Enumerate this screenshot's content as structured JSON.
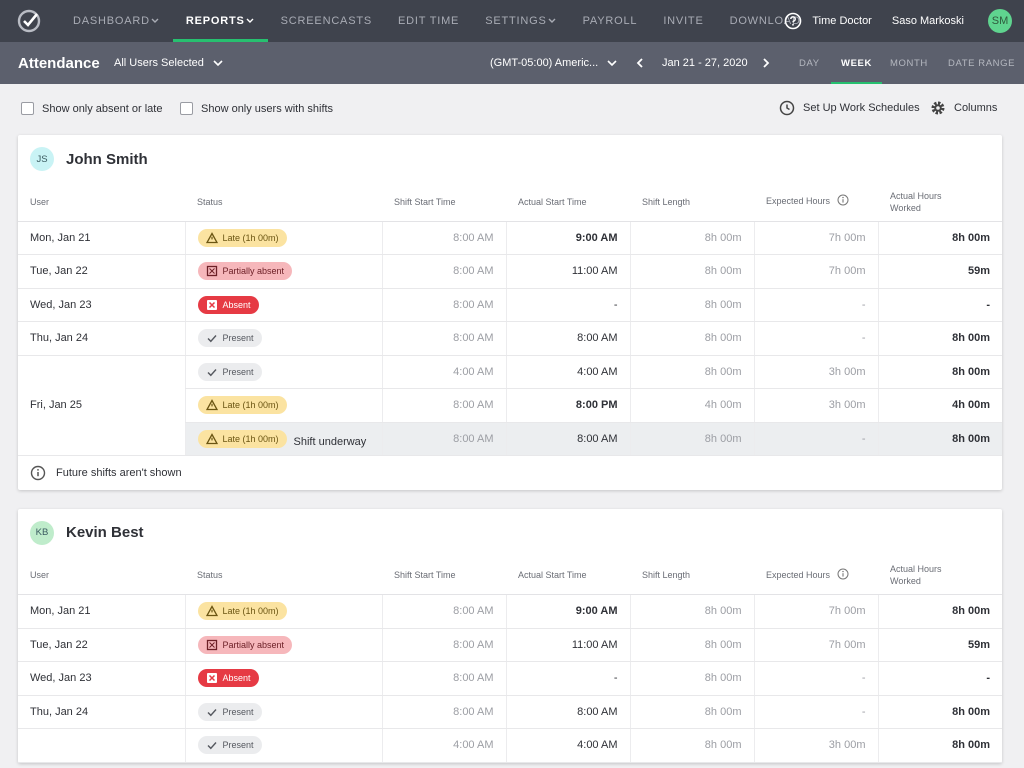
{
  "nav": {
    "items": [
      "DASHBOARD",
      "REPORTS",
      "SCREENCASTS",
      "EDIT TIME",
      "SETTINGS",
      "PAYROLL",
      "INVITE",
      "DOWNLOAD"
    ],
    "dropdown": [
      true,
      true,
      false,
      false,
      true,
      false,
      false,
      false
    ],
    "active": 1,
    "brand": "Time Doctor",
    "user": "Saso Markoski",
    "initials": "SM"
  },
  "toolbar": {
    "title": "Attendance",
    "users": "All Users Selected",
    "timezone": "(GMT-05:00) Americ...",
    "range": "Jan 21 - 27, 2020",
    "views": [
      "DAY",
      "WEEK",
      "MONTH",
      "DATE RANGE"
    ],
    "active_view": 1
  },
  "filters": {
    "absent": "Show only absent or late",
    "shifts": "Show only users with shifts",
    "schedules": "Set Up Work Schedules",
    "columns": "Columns"
  },
  "columns": [
    "User",
    "Status",
    "Shift Start Time",
    "Actual Start Time",
    "Shift Length",
    "Expected Hours",
    "Actual Hours Worked"
  ],
  "cards": [
    {
      "initials": "JS",
      "name": "John Smith",
      "avatar": "#c9f3f5",
      "note": "Future shifts aren't shown",
      "days": [
        {
          "day": "Mon, Jan 21",
          "shifts": [
            {
              "status": "Late (1h 00m)",
              "kind": "late",
              "start": "8:00 AM",
              "actual": "9:00 AM",
              "bold_actual": true,
              "length": "8h 00m",
              "expected": "7h 00m",
              "worked": "8h 00m"
            }
          ]
        },
        {
          "day": "Tue, Jan 22",
          "shifts": [
            {
              "status": "Partially absent",
              "kind": "partial",
              "start": "8:00 AM",
              "actual": "11:00 AM",
              "bold_actual": false,
              "length": "8h 00m",
              "expected": "7h 00m",
              "worked": "59m"
            }
          ]
        },
        {
          "day": "Wed, Jan 23",
          "shifts": [
            {
              "status": "Absent",
              "kind": "absent",
              "start": "8:00 AM",
              "actual": "-",
              "bold_actual": false,
              "length": "8h 00m",
              "expected": "-",
              "worked": "-"
            }
          ]
        },
        {
          "day": "Thu, Jan 24",
          "shifts": [
            {
              "status": "Present",
              "kind": "present",
              "start": "8:00 AM",
              "actual": "8:00 AM",
              "bold_actual": false,
              "length": "8h 00m",
              "expected": "-",
              "worked": "8h 00m"
            }
          ]
        },
        {
          "day": "Fri, Jan 25",
          "shifts": [
            {
              "status": "Present",
              "kind": "present",
              "start": "4:00 AM",
              "actual": "4:00 AM",
              "bold_actual": false,
              "length": "8h 00m",
              "expected": "3h 00m",
              "worked": "8h 00m"
            },
            {
              "status": "Late (1h 00m)",
              "kind": "late",
              "start": "8:00 AM",
              "actual": "8:00 PM",
              "bold_actual": true,
              "length": "4h 00m",
              "expected": "3h 00m",
              "worked": "4h 00m"
            },
            {
              "status": "Late (1h 00m)",
              "kind": "late",
              "note": "Shift underway",
              "start": "8:00 AM",
              "actual": "8:00 AM",
              "bold_actual": false,
              "length": "8h 00m",
              "expected": "-",
              "worked": "8h 00m"
            }
          ]
        }
      ]
    },
    {
      "initials": "KB",
      "name": "Kevin Best",
      "avatar": "#bfeccb",
      "days": [
        {
          "day": "Mon, Jan 21",
          "shifts": [
            {
              "status": "Late (1h 00m)",
              "kind": "late",
              "start": "8:00 AM",
              "actual": "9:00 AM",
              "bold_actual": true,
              "length": "8h 00m",
              "expected": "7h 00m",
              "worked": "8h 00m"
            }
          ]
        },
        {
          "day": "Tue, Jan 22",
          "shifts": [
            {
              "status": "Partially absent",
              "kind": "partial",
              "start": "8:00 AM",
              "actual": "11:00 AM",
              "bold_actual": false,
              "length": "8h 00m",
              "expected": "7h 00m",
              "worked": "59m"
            }
          ]
        },
        {
          "day": "Wed, Jan 23",
          "shifts": [
            {
              "status": "Absent",
              "kind": "absent",
              "start": "8:00 AM",
              "actual": "-",
              "bold_actual": false,
              "length": "8h 00m",
              "expected": "-",
              "worked": "-"
            }
          ]
        },
        {
          "day": "Thu, Jan 24",
          "shifts": [
            {
              "status": "Present",
              "kind": "present",
              "start": "8:00 AM",
              "actual": "8:00 AM",
              "bold_actual": false,
              "length": "8h 00m",
              "expected": "-",
              "worked": "8h 00m"
            }
          ]
        },
        {
          "day": null,
          "shifts": [
            {
              "status": "Present",
              "kind": "present",
              "start": "4:00 AM",
              "actual": "4:00 AM",
              "bold_actual": false,
              "length": "8h 00m",
              "expected": "3h 00m",
              "worked": "8h 00m"
            }
          ]
        }
      ]
    }
  ]
}
